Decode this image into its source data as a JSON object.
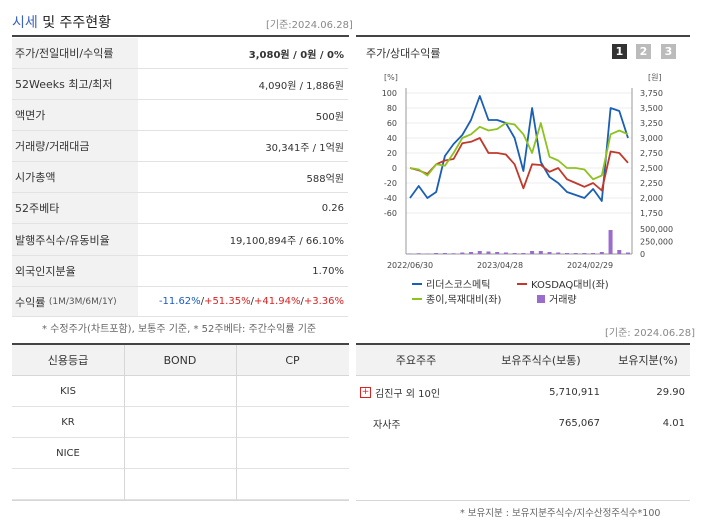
{
  "header": {
    "title_hl": "시세",
    "title_rest": " 및 주주현황",
    "asof": "[기준:2024.06.28]"
  },
  "quote_table": {
    "rows": [
      {
        "label": "주가/전일대비/수익률",
        "value": "3,080원 / 0원 / 0%"
      },
      {
        "label": "52Weeks 최고/최저",
        "value": "4,090원 / 1,886원"
      },
      {
        "label": "액면가",
        "value": "500원"
      },
      {
        "label": "거래량/거래대금",
        "value": "30,341주 / 1억원"
      },
      {
        "label": "시가총액",
        "value": "588억원"
      },
      {
        "label": "52주베타",
        "value": "0.26"
      },
      {
        "label": "발행주식수/유동비율",
        "value": "19,100,894주 / 66.10%"
      },
      {
        "label": "외국인지분율",
        "value": "1.70%"
      }
    ],
    "return_label": "수익률",
    "return_periods": "(1M/3M/6M/1Y)",
    "returns": [
      "-11.62%",
      "+51.35%",
      "+41.94%",
      "+3.36%"
    ],
    "sep": "/"
  },
  "footnote_left": "* 수정주가(차트포함), 보통주 기준, * 52주베타: 주간수익률 기준",
  "chart": {
    "title": "주가/상대수익률",
    "pages": [
      "1",
      "2",
      "3"
    ],
    "left_unit": "[%]",
    "right_unit": "[원]",
    "legend": {
      "s1": "리더스코스메틱",
      "s2": "KOSDAQ대비(좌)",
      "s3": "종이,목재대비(좌)",
      "s4": "거래량"
    }
  },
  "chart_data": {
    "type": "line",
    "x_tick_labels": [
      "2022/06/30",
      "2023/04/28",
      "2024/02/29"
    ],
    "left_axis": {
      "unit": "%",
      "ticks": [
        100,
        80,
        60,
        40,
        20,
        0,
        -20,
        -40,
        -60
      ],
      "range": [
        -60,
        100
      ]
    },
    "right_axis_price": {
      "unit": "원",
      "ticks": [
        "3,750",
        "3,500",
        "3,250",
        "3,000",
        "2,750",
        "2,500",
        "2,250",
        "2,000",
        "1,750"
      ],
      "range": [
        1750,
        3750
      ]
    },
    "right_axis_volume": {
      "ticks": [
        "500,000",
        "250,000",
        "0"
      ],
      "range": [
        0,
        500000
      ]
    },
    "series": [
      {
        "name": "리더스코스메틱",
        "color": "#1a5fb4",
        "values": [
          2000,
          2200,
          2000,
          2100,
          2700,
          2900,
          3050,
          3300,
          3700,
          3300,
          3300,
          3250,
          3000,
          2450,
          3500,
          2600,
          2350,
          2250,
          2100,
          2050,
          2000,
          2150,
          1950,
          3500,
          3450,
          3000
        ]
      },
      {
        "name": "KOSDAQ대비(좌)",
        "color": "#c0392b",
        "values": [
          0,
          -3,
          -8,
          5,
          10,
          12,
          33,
          35,
          40,
          20,
          20,
          18,
          5,
          -27,
          5,
          4,
          -5,
          0,
          -15,
          -20,
          -25,
          -20,
          -30,
          22,
          20,
          7
        ]
      },
      {
        "name": "종이,목재대비(좌)",
        "color": "#8dc21f",
        "values": [
          0,
          -2,
          -10,
          5,
          3,
          20,
          40,
          45,
          55,
          50,
          52,
          60,
          58,
          45,
          20,
          60,
          15,
          10,
          0,
          0,
          -2,
          -15,
          -10,
          45,
          50,
          45
        ]
      },
      {
        "name": "거래량",
        "color": "#9b6ccc",
        "type": "bar",
        "values": [
          10000,
          15000,
          10000,
          20000,
          20000,
          15000,
          30000,
          40000,
          60000,
          50000,
          40000,
          30000,
          20000,
          20000,
          60000,
          60000,
          40000,
          30000,
          20000,
          20000,
          20000,
          20000,
          40000,
          480000,
          80000,
          30000
        ]
      }
    ]
  },
  "credit": {
    "headers": [
      "신용등급",
      "BOND",
      "CP"
    ],
    "rows": [
      [
        "KIS",
        "",
        ""
      ],
      [
        "KR",
        "",
        ""
      ],
      [
        "NICE",
        "",
        ""
      ],
      [
        "",
        "",
        ""
      ]
    ]
  },
  "holders": {
    "asof": "[기준: 2024.06.28]",
    "headers": [
      "주요주주",
      "보유주식수(보통)",
      "보유지분(%)"
    ],
    "rows": [
      {
        "name": "김진구 외 10인",
        "shares": "5,710,911",
        "pct": "29.90",
        "expand": "+"
      },
      {
        "name": "자사주",
        "shares": "765,067",
        "pct": "4.01",
        "expand": ""
      }
    ],
    "footnote": "* 보유지분 : 보유지분주식수/지수산정주식수*100"
  },
  "colors": {
    "accent_blue": "#3a62c7",
    "neg": "#1a5bc4",
    "pos": "#dd2222"
  }
}
